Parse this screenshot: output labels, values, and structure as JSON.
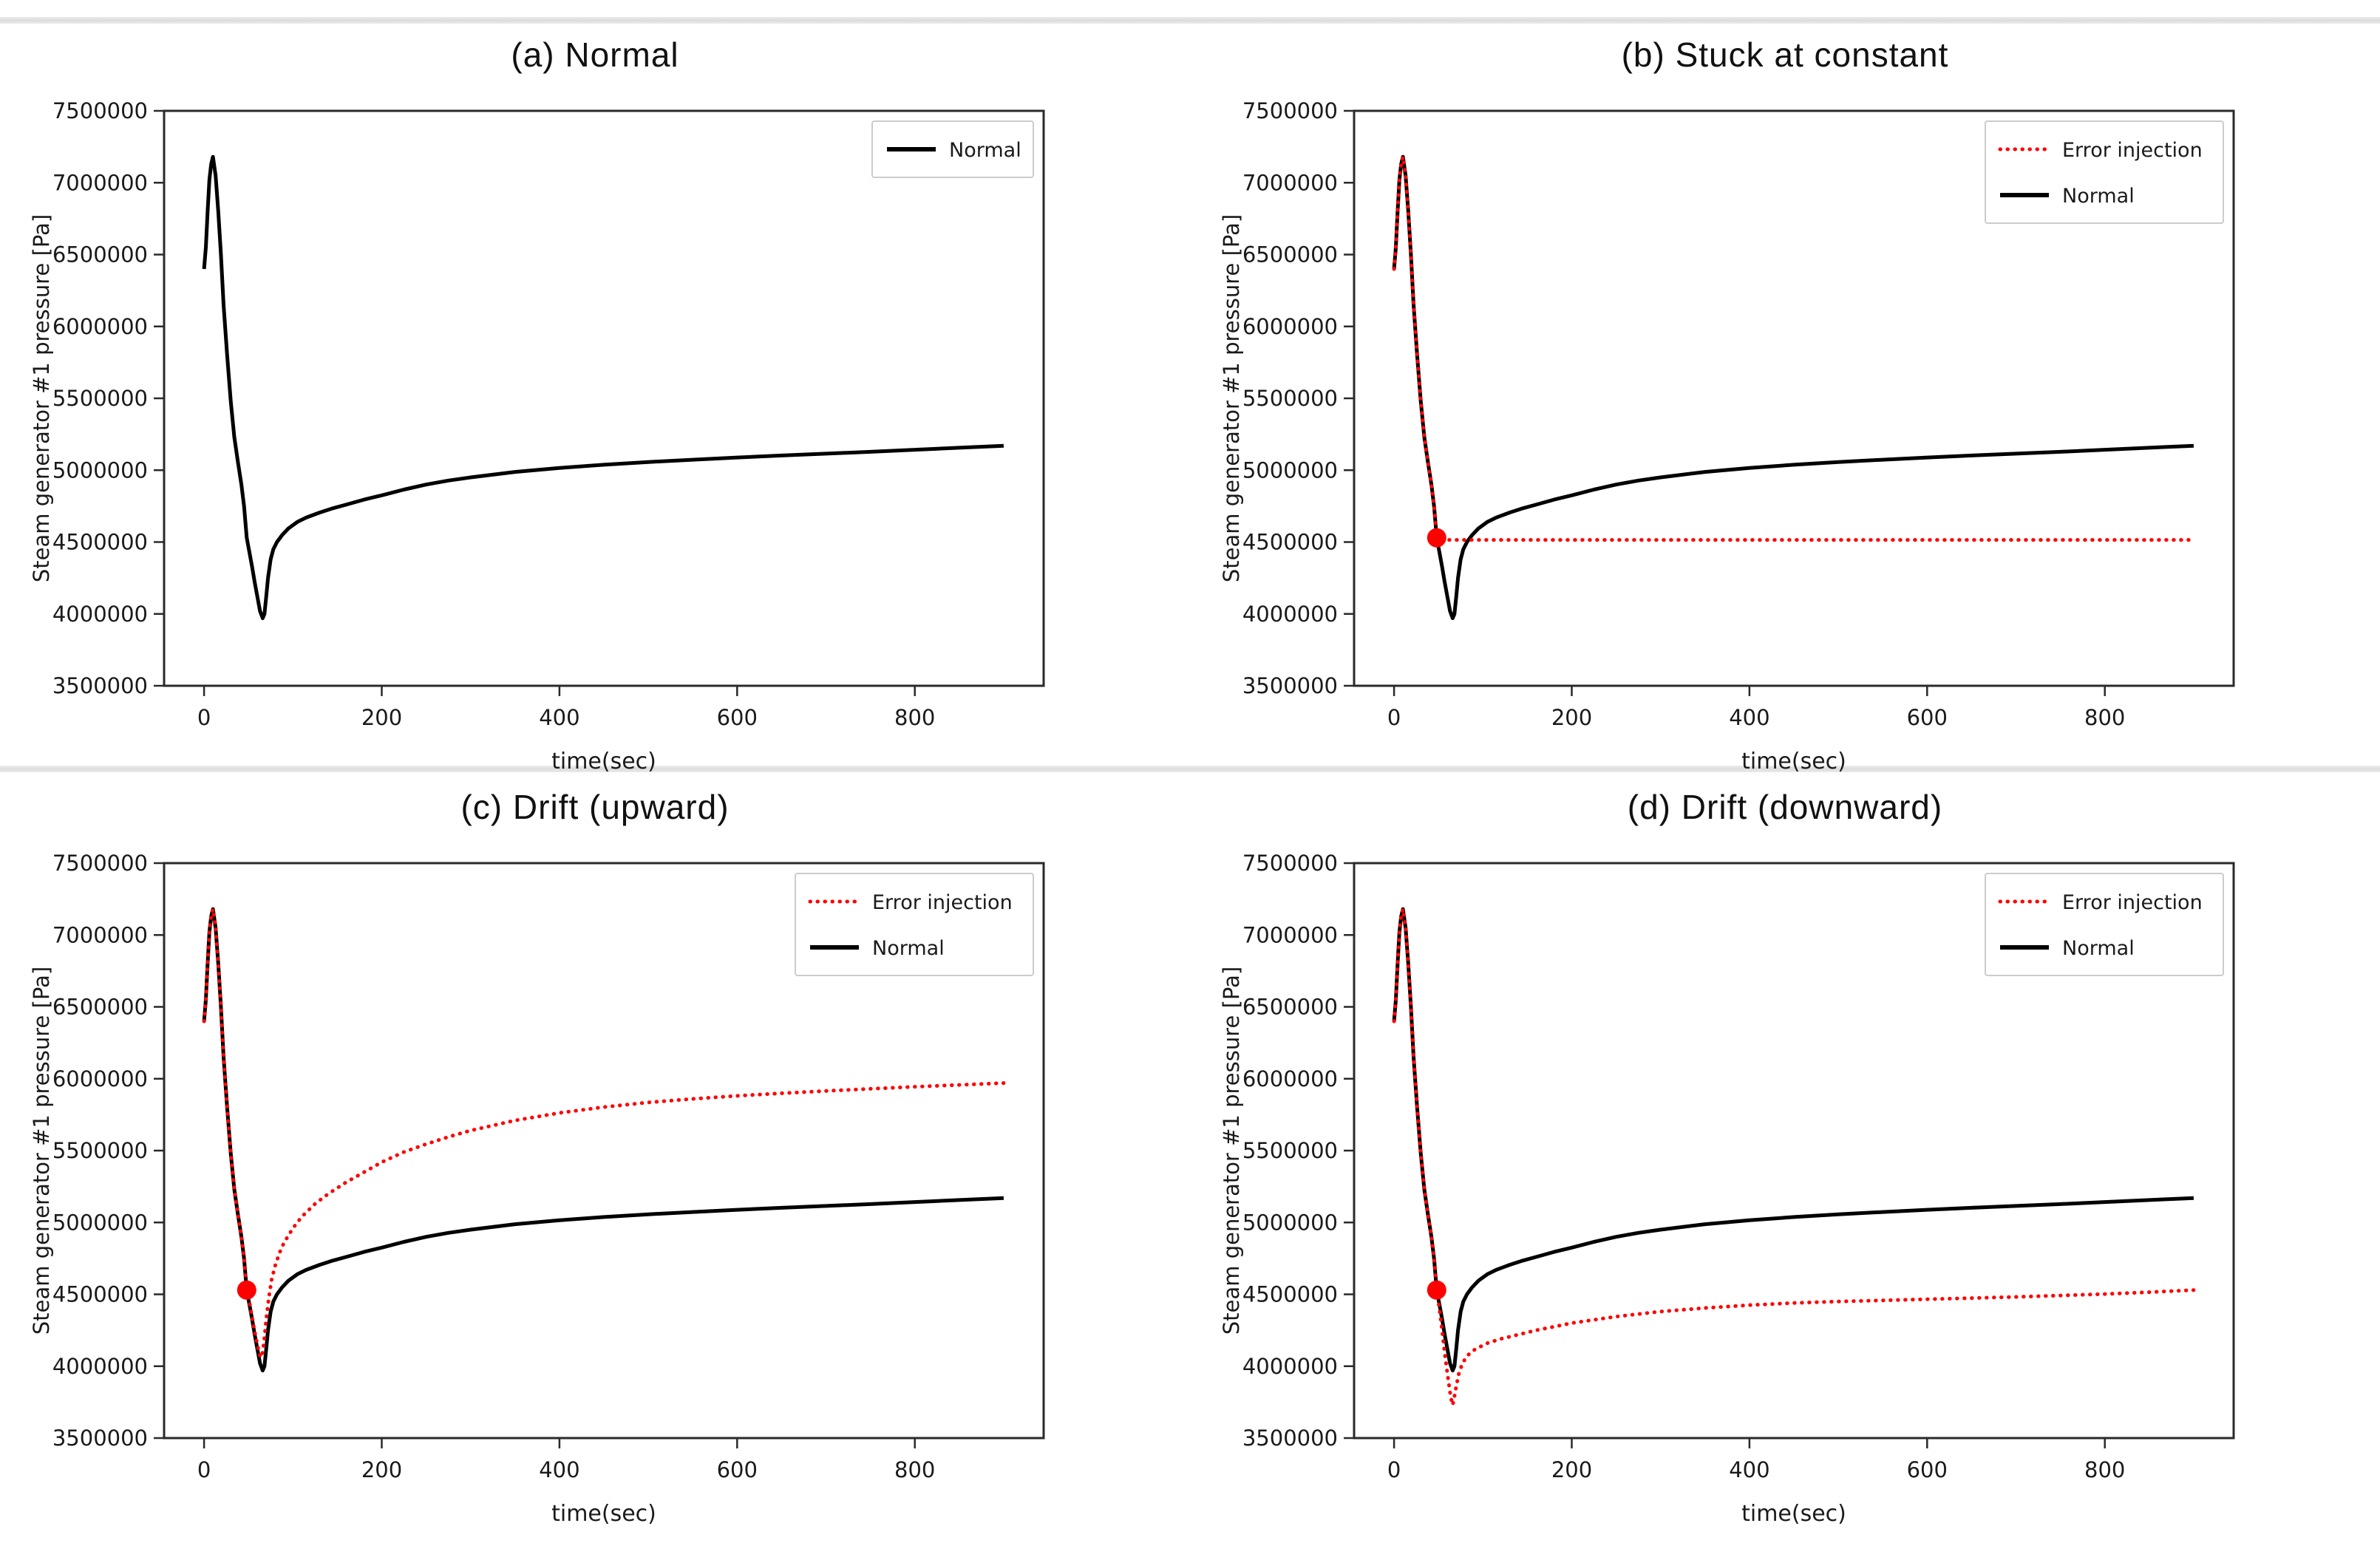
{
  "page": {
    "background": "#ffffff",
    "separator_color": "#e4e4e4",
    "separators": [
      {
        "y": 23
      },
      {
        "y": 1036
      }
    ]
  },
  "curves": {
    "normal": {
      "name": "Normal",
      "x": [
        0,
        2,
        4,
        6,
        8,
        10,
        13,
        16,
        19,
        22,
        26,
        30,
        34,
        38,
        42,
        45,
        48,
        51,
        54,
        57,
        60,
        63,
        66,
        68,
        70,
        72,
        75,
        78,
        82,
        88,
        95,
        105,
        115,
        130,
        145,
        160,
        180,
        200,
        225,
        250,
        275,
        300,
        350,
        400,
        450,
        500,
        550,
        600,
        650,
        700,
        750,
        800,
        850,
        900
      ],
      "y": [
        6400000,
        6550000,
        6800000,
        7020000,
        7130000,
        7180000,
        7050000,
        6800000,
        6500000,
        6150000,
        5800000,
        5480000,
        5230000,
        5060000,
        4900000,
        4750000,
        4530000,
        4430000,
        4330000,
        4220000,
        4120000,
        4020000,
        3970000,
        4000000,
        4120000,
        4250000,
        4380000,
        4450000,
        4500000,
        4550000,
        4595000,
        4640000,
        4670000,
        4705000,
        4735000,
        4760000,
        4795000,
        4825000,
        4865000,
        4900000,
        4928000,
        4950000,
        4988000,
        5015000,
        5038000,
        5057000,
        5073000,
        5088000,
        5102000,
        5115000,
        5128000,
        5142000,
        5156000,
        5170000
      ]
    }
  },
  "chart_data": [
    {
      "id": "a",
      "type": "line",
      "title": "(a) Normal",
      "xlabel": "time(sec)",
      "ylabel": "Steam generator #1 pressure [Pa]",
      "xlim": [
        -45,
        945
      ],
      "ylim": [
        3500000,
        7500000
      ],
      "xticks": [
        0,
        200,
        400,
        600,
        800
      ],
      "yticks": [
        3500000,
        4000000,
        4500000,
        5000000,
        5500000,
        6000000,
        6500000,
        7000000,
        7500000
      ],
      "legend": {
        "position": "upper right",
        "entries": [
          {
            "label": "Normal",
            "color": "#000000",
            "style": "solid"
          }
        ]
      },
      "marker": null,
      "series": [
        {
          "name": "Normal",
          "color": "#000000",
          "style": "solid",
          "curve": "normal"
        }
      ]
    },
    {
      "id": "b",
      "type": "line",
      "title": "(b) Stuck at constant",
      "xlabel": "time(sec)",
      "ylabel": "Steam generator #1 pressure [Pa]",
      "xlim": [
        -45,
        945
      ],
      "ylim": [
        3500000,
        7500000
      ],
      "xticks": [
        0,
        200,
        400,
        600,
        800
      ],
      "yticks": [
        3500000,
        4000000,
        4500000,
        5000000,
        5500000,
        6000000,
        6500000,
        7000000,
        7500000
      ],
      "legend": {
        "position": "upper right",
        "entries": [
          {
            "label": "Error injection",
            "color": "#ff0000",
            "style": "dotted"
          },
          {
            "label": "Normal",
            "color": "#000000",
            "style": "solid"
          }
        ]
      },
      "marker": {
        "x": 48,
        "y": 4530000,
        "color": "#ff0000"
      },
      "series": [
        {
          "name": "Normal",
          "color": "#000000",
          "style": "solid",
          "curve": "normal"
        },
        {
          "name": "Error injection",
          "color": "#ff0000",
          "style": "dotted",
          "follow_curve": "normal",
          "follow_until": 48,
          "x": [
            48,
            120,
            200,
            300,
            400,
            500,
            600,
            700,
            800,
            900
          ],
          "y": [
            4515000,
            4515000,
            4515000,
            4515000,
            4515000,
            4515000,
            4515000,
            4515000,
            4515000,
            4515000
          ]
        }
      ]
    },
    {
      "id": "c",
      "type": "line",
      "title": "(c) Drift (upward)",
      "xlabel": "time(sec)",
      "ylabel": "Steam generator #1 pressure [Pa]",
      "xlim": [
        -45,
        945
      ],
      "ylim": [
        3500000,
        7500000
      ],
      "xticks": [
        0,
        200,
        400,
        600,
        800
      ],
      "yticks": [
        3500000,
        4000000,
        4500000,
        5000000,
        5500000,
        6000000,
        6500000,
        7000000,
        7500000
      ],
      "legend": {
        "position": "upper right",
        "entries": [
          {
            "label": "Error injection",
            "color": "#ff0000",
            "style": "dotted"
          },
          {
            "label": "Normal",
            "color": "#000000",
            "style": "solid"
          }
        ]
      },
      "marker": {
        "x": 48,
        "y": 4530000,
        "color": "#ff0000"
      },
      "series": [
        {
          "name": "Normal",
          "color": "#000000",
          "style": "solid",
          "curve": "normal"
        },
        {
          "name": "Error injection",
          "color": "#ff0000",
          "style": "dotted",
          "follow_curve": "normal",
          "follow_until": 48,
          "x": [
            51,
            54,
            57,
            60,
            62,
            64,
            66,
            68,
            70,
            73,
            76,
            80,
            85,
            90,
            100,
            110,
            125,
            140,
            160,
            180,
            200,
            225,
            250,
            275,
            300,
            350,
            400,
            450,
            500,
            550,
            600,
            650,
            700,
            750,
            800,
            850,
            900
          ],
          "y": [
            4450000,
            4340000,
            4240000,
            4150000,
            4090000,
            4060000,
            4100000,
            4200000,
            4330000,
            4480000,
            4600000,
            4700000,
            4790000,
            4860000,
            4960000,
            5040000,
            5130000,
            5200000,
            5280000,
            5350000,
            5420000,
            5490000,
            5545000,
            5595000,
            5640000,
            5710000,
            5762000,
            5803000,
            5835000,
            5860000,
            5881000,
            5899000,
            5915000,
            5930000,
            5944000,
            5957000,
            5970000
          ]
        }
      ]
    },
    {
      "id": "d",
      "type": "line",
      "title": "(d) Drift (downward)",
      "xlabel": "time(sec)",
      "ylabel": "Steam generator #1 pressure [Pa]",
      "xlim": [
        -45,
        945
      ],
      "ylim": [
        3500000,
        7500000
      ],
      "xticks": [
        0,
        200,
        400,
        600,
        800
      ],
      "yticks": [
        3500000,
        4000000,
        4500000,
        5000000,
        5500000,
        6000000,
        6500000,
        7000000,
        7500000
      ],
      "legend": {
        "position": "upper right",
        "entries": [
          {
            "label": "Error injection",
            "color": "#ff0000",
            "style": "dotted"
          },
          {
            "label": "Normal",
            "color": "#000000",
            "style": "solid"
          }
        ]
      },
      "marker": {
        "x": 48,
        "y": 4530000,
        "color": "#ff0000"
      },
      "series": [
        {
          "name": "Normal",
          "color": "#000000",
          "style": "solid",
          "curve": "normal"
        },
        {
          "name": "Error injection",
          "color": "#ff0000",
          "style": "dotted",
          "follow_curve": "normal",
          "follow_until": 48,
          "x": [
            51,
            54,
            57,
            60,
            63,
            65,
            66,
            68,
            70,
            73,
            77,
            82,
            88,
            95,
            105,
            120,
            140,
            160,
            180,
            200,
            250,
            300,
            350,
            400,
            450,
            500,
            550,
            600,
            650,
            700,
            750,
            800,
            850,
            900
          ],
          "y": [
            4400000,
            4250000,
            4090000,
            3950000,
            3820000,
            3750000,
            3730000,
            3790000,
            3860000,
            3950000,
            4020000,
            4070000,
            4105000,
            4130000,
            4160000,
            4190000,
            4220000,
            4250000,
            4275000,
            4300000,
            4345000,
            4380000,
            4405000,
            4425000,
            4440000,
            4450000,
            4458000,
            4466000,
            4474000,
            4482000,
            4492000,
            4502000,
            4515000,
            4530000
          ]
        }
      ]
    }
  ]
}
